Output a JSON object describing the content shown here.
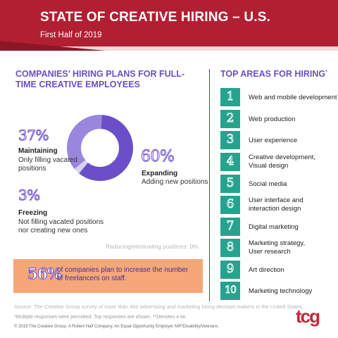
{
  "colors": {
    "header": "#b21f32",
    "purple": "#6c4fc7",
    "teal": "#26a38e",
    "banner": "#f5a77a",
    "donut_light": "#9a86dc",
    "donut_dark": "#6a4fc9",
    "donut_pale": "#d8d2f1"
  },
  "header": {
    "title": "STATE OF CREATIVE HIRING – U.S.",
    "subtitle": "First Half of 2019"
  },
  "left": {
    "heading": "COMPANIES’ HIRING PLANS FOR FULL-TIME CREATIVE EMPLOYEES",
    "segments": [
      {
        "pct_label": "37%",
        "value": 37,
        "title": "Maintaining",
        "desc_1": "Only filling vacated",
        "desc_2": "positions"
      },
      {
        "pct_label": "60%",
        "value": 60,
        "title": "Expanding",
        "desc_1": "Adding new positions"
      },
      {
        "pct_label": "3%",
        "value": 3,
        "title": "Freezing",
        "desc_1": "Not filling vacated positions",
        "desc_2": "nor creating new ones"
      }
    ],
    "reducing_note": "Reducing/eliminating positions: 0%",
    "banner": {
      "pct": "56%",
      "text": "of companies plan to increase the number of freelancers on staff."
    }
  },
  "right": {
    "heading": "TOP AREAS FOR HIRING",
    "heading_mark": "*",
    "items": [
      {
        "num": "1",
        "line1": "Web and mobile development",
        "line2": ""
      },
      {
        "num": "2",
        "line1": "Web production",
        "line2": ""
      },
      {
        "num": "3",
        "line1": "User experience",
        "line2": ""
      },
      {
        "num": "4",
        "line1": "Creative development,",
        "line2": "Visual design"
      },
      {
        "num": "5",
        "line1": "Social media",
        "line2": ""
      },
      {
        "num": "6",
        "line1": "User interface and",
        "line2": "interaction design"
      },
      {
        "num": "7",
        "line1": "Digital marketing",
        "line2": ""
      },
      {
        "num": "8",
        "line1": "Marketing strategy,",
        "line2": "User research"
      },
      {
        "num": "9",
        "line1": "Art direction",
        "line2": ""
      },
      {
        "num": "10",
        "line1": "Marketing technology",
        "line2": ""
      }
    ]
  },
  "footer": {
    "source": "Source: The Creative Group survey of more than 400 advertising and marketing hiring decision makers in the United States.",
    "note": "*Multiple responses were permitted. Top responses are shown. **Denotes a tie.",
    "copyright": "© 2019 The Creative Group. A Robert Half Company. An Equal Opportunity Employer M/F/Disability/Veterans.",
    "logo_text": "tcg"
  }
}
